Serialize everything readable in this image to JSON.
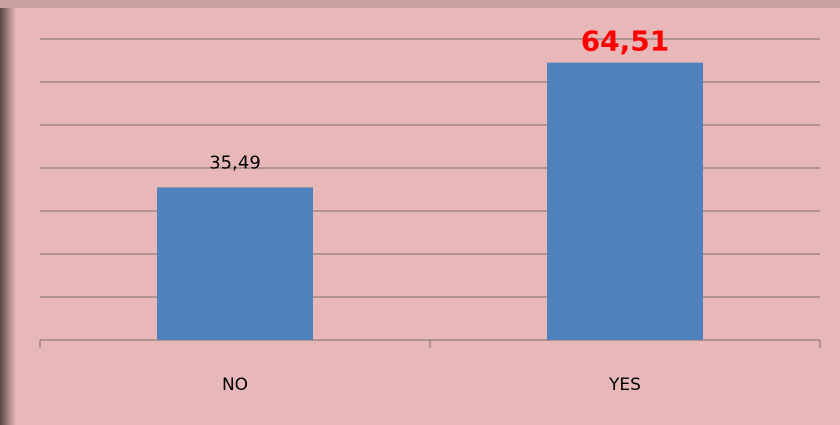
{
  "chart_data": {
    "type": "bar",
    "categories": [
      "NO",
      "YES"
    ],
    "values": [
      35.49,
      64.51
    ],
    "value_labels": [
      "35,49",
      "64,51"
    ],
    "value_label_colors": [
      "#000000",
      "#ff0000"
    ],
    "color": "#4f81bd",
    "ylim": [
      0,
      70
    ],
    "yticks": [
      0,
      10,
      20,
      30,
      40,
      50,
      60,
      70
    ],
    "grid": true
  }
}
